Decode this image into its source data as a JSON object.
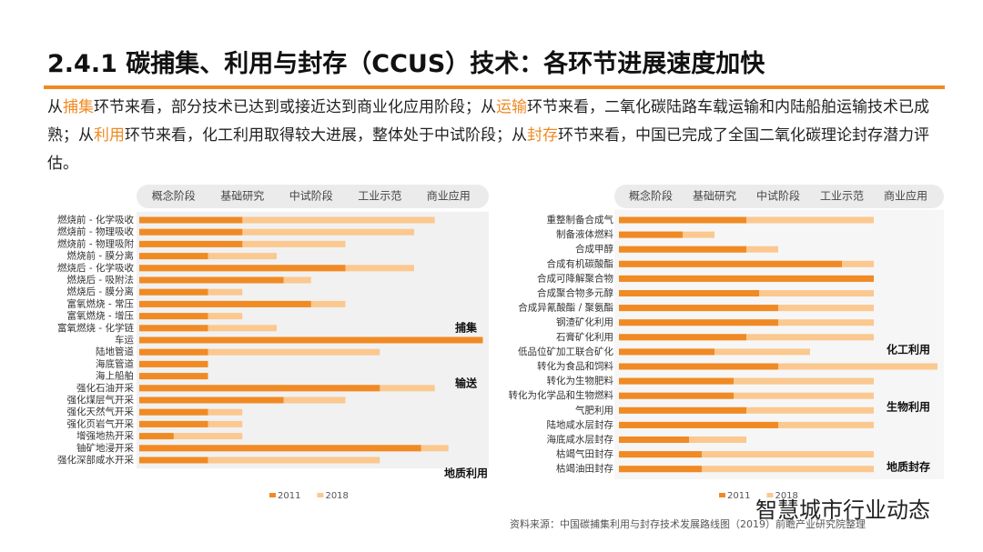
{
  "header": {
    "title": "2.4.1 碳捕集、利用与封存（CCUS）技术：各环节进展速度加快",
    "intro": [
      "从",
      "捕集",
      "环节来看，部分技术已达到或接近达到商业化应用阶段；从",
      "运输",
      "环节来看，二氧化碳陆路车载运输和内陆船舶运输技术已成熟；从",
      "利用",
      "环节来看，化工利用取得较大进展，整体处于中试阶段；从",
      "封存",
      "环节来看，中国已完成了全国二氧化碳理论封存潜力评估。"
    ]
  },
  "chart_data": [
    {
      "type": "bar",
      "orientation": "horizontal",
      "categories": [
        "燃烧前 - 化学吸收",
        "燃烧前 - 物理吸收",
        "燃烧前 - 物理吸附",
        "燃烧前 - 膜分离",
        "燃烧后 - 化学吸收",
        "燃烧后 - 吸附法",
        "燃烧后 - 膜分离",
        "富氧燃烧 - 常压",
        "富氧燃烧 - 增压",
        "富氧燃烧 - 化学链",
        "车运",
        "陆地管道",
        "海底管道",
        "海上船舶",
        "强化石油开采",
        "强化煤层气开采",
        "强化天然气开采",
        "强化页岩气开采",
        "增强地热开采",
        "铀矿地浸开采",
        "强化深部咸水开采"
      ],
      "series": [
        {
          "name": "2011",
          "color": "#f08a24",
          "values": [
            1.5,
            1.5,
            1.5,
            1.0,
            3.0,
            2.1,
            1.0,
            2.5,
            1.0,
            1.0,
            5.0,
            1.0,
            1.0,
            1.0,
            3.5,
            2.1,
            1.0,
            1.0,
            0.5,
            4.1,
            1.0
          ]
        },
        {
          "name": "2018",
          "color": "#fbc890",
          "values": [
            4.3,
            4.0,
            3.0,
            2.0,
            4.0,
            2.5,
            1.5,
            3.0,
            1.5,
            2.0,
            5.0,
            3.5,
            1.0,
            1.0,
            4.3,
            3.0,
            1.5,
            1.5,
            1.5,
            4.5,
            3.5
          ]
        }
      ],
      "xlim": [
        0,
        5
      ],
      "xticks": [
        {
          "value": 0.5,
          "label": "概念阶段"
        },
        {
          "value": 1.5,
          "label": "基础研究"
        },
        {
          "value": 2.5,
          "label": "中试阶段"
        },
        {
          "value": 3.5,
          "label": "工业示范"
        },
        {
          "value": 4.5,
          "label": "商业应用"
        }
      ],
      "annotations": [
        "捕集",
        "输送",
        "地质利用"
      ]
    },
    {
      "type": "bar",
      "orientation": "horizontal",
      "categories": [
        "重整制备合成气",
        "制备液体燃料",
        "合成甲醇",
        "合成有机碳酸酯",
        "合成可降解聚合物",
        "合成聚合物多元醇",
        "合成异氰酸酯 / 聚氨酯",
        "钢渣矿化利用",
        "石膏矿化利用",
        "低品位矿加工联合矿化",
        "转化为食品和饲料",
        "转化为生物肥料",
        "转化为化学品和生物燃料",
        "气肥利用",
        "陆地咸水层封存",
        "海底咸水层封存",
        "枯竭气田封存",
        "枯竭油田封存"
      ],
      "series": [
        {
          "name": "2011",
          "color": "#f08a24",
          "values": [
            2.0,
            1.0,
            2.0,
            3.5,
            4.0,
            2.2,
            2.5,
            2.5,
            2.0,
            1.5,
            2.5,
            1.8,
            1.8,
            2.0,
            2.5,
            1.1,
            1.3,
            1.3
          ]
        },
        {
          "name": "2018",
          "color": "#fbc890",
          "values": [
            4.0,
            1.5,
            2.5,
            4.0,
            4.0,
            4.0,
            4.0,
            4.0,
            4.0,
            3.0,
            5.0,
            4.0,
            4.0,
            4.0,
            4.0,
            2.0,
            4.0,
            4.0
          ]
        }
      ],
      "xlim": [
        0,
        5
      ],
      "xticks": [
        {
          "value": 0.5,
          "label": "概念阶段"
        },
        {
          "value": 1.5,
          "label": "基础研究"
        },
        {
          "value": 2.5,
          "label": "中试阶段"
        },
        {
          "value": 3.5,
          "label": "工业示范"
        },
        {
          "value": 4.5,
          "label": "商业应用"
        }
      ],
      "annotations": [
        "化工利用",
        "生物利用",
        "地质封存"
      ]
    }
  ],
  "source": "资料来源：中国碳捕集利用与封存技术发展路线图（2019）前瞻产业研究院整理",
  "watermark": "智慧城市行业动态"
}
